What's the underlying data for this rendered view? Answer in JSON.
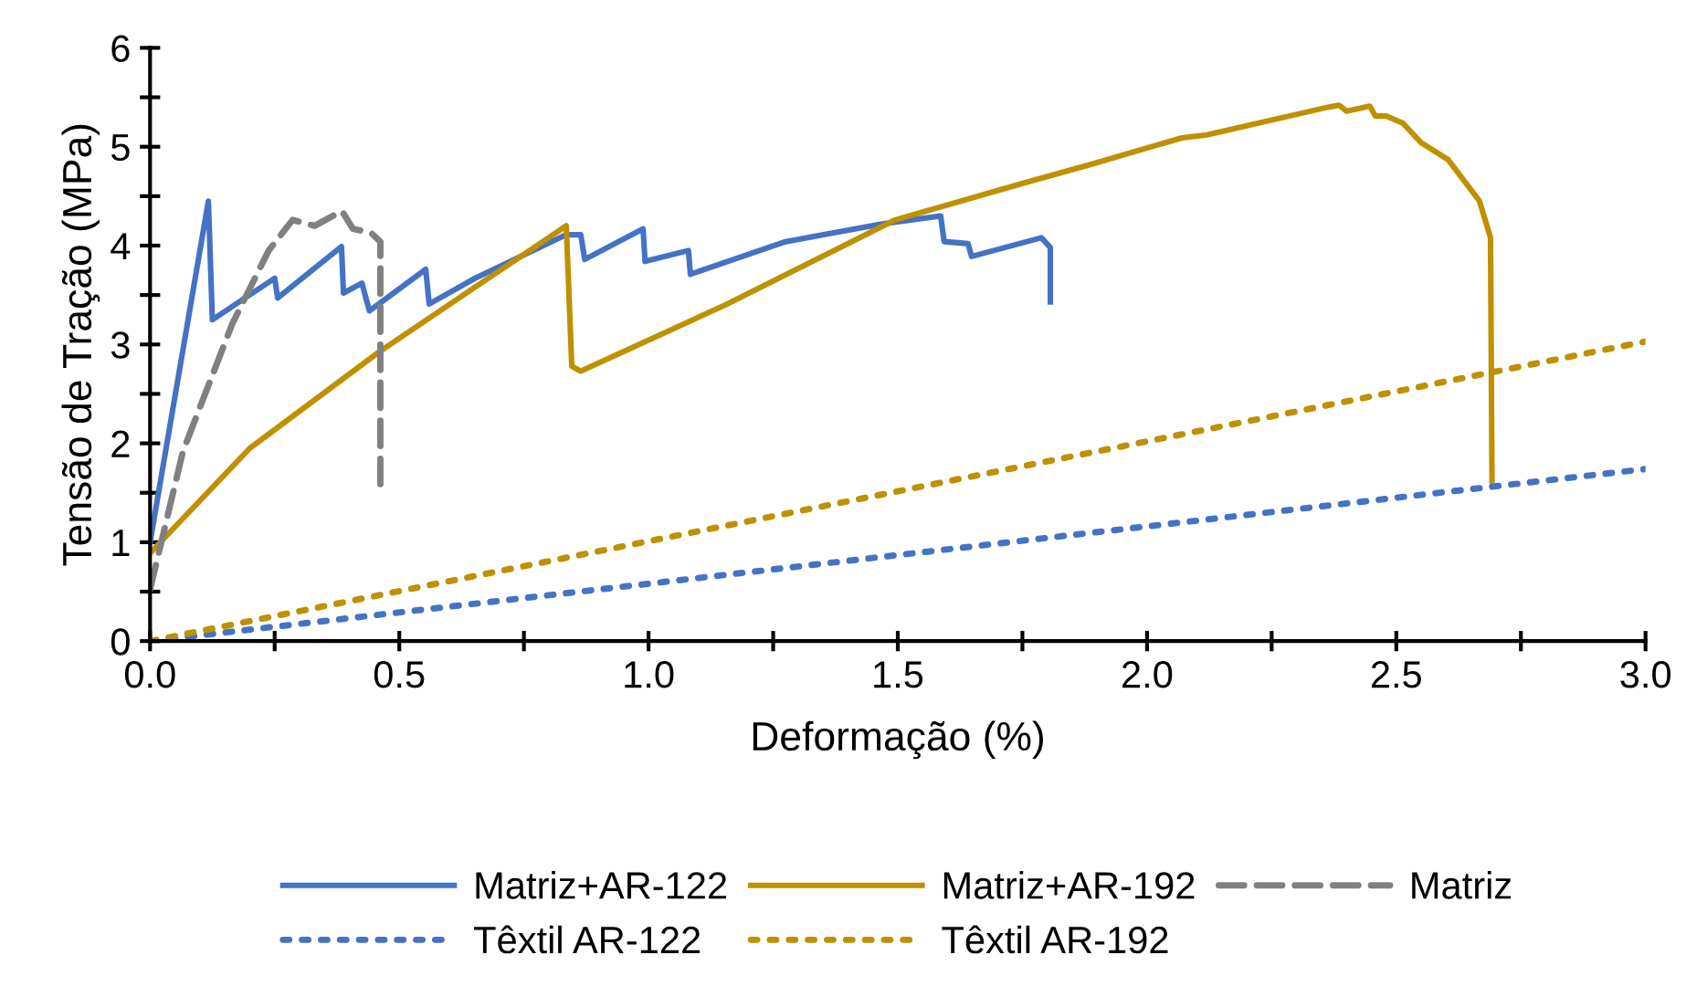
{
  "chart_data": {
    "type": "line",
    "xlabel": "Deformação (%)",
    "ylabel": "Tensão de Tração (MPa)",
    "xlim": [
      0,
      3.0
    ],
    "ylim": [
      0,
      6
    ],
    "xticks": [
      {
        "value": 0,
        "label": "0.0"
      },
      {
        "value": 0.25,
        "label": null
      },
      {
        "value": 0.5,
        "label": "0.5"
      },
      {
        "value": 0.75,
        "label": null
      },
      {
        "value": 1.0,
        "label": "1.0"
      },
      {
        "value": 1.25,
        "label": null
      },
      {
        "value": 1.5,
        "label": "1.5"
      },
      {
        "value": 1.75,
        "label": null
      },
      {
        "value": 2.0,
        "label": "2.0"
      },
      {
        "value": 2.25,
        "label": null
      },
      {
        "value": 2.5,
        "label": "2.5"
      },
      {
        "value": 2.75,
        "label": null
      },
      {
        "value": 3.0,
        "label": "3.0"
      }
    ],
    "yticks": [
      0,
      {
        "value": 0.5,
        "label": null
      },
      1,
      {
        "value": 1.5,
        "label": null
      },
      2,
      {
        "value": 2.5,
        "label": null
      },
      3,
      {
        "value": 3.5,
        "label": null
      },
      4,
      {
        "value": 4.5,
        "label": null
      },
      5,
      {
        "value": 5.5,
        "label": null
      },
      6
    ],
    "grid": false,
    "legend": "bottom",
    "marker": "none",
    "series": [
      {
        "name": "Matriz+AR-122",
        "color": "#4472c4",
        "line_style": "solid",
        "x": [
          0,
          0.117,
          0.125,
          0.25,
          0.256,
          0.384,
          0.388,
          0.425,
          0.44,
          0.553,
          0.56,
          0.652,
          0.835,
          0.864,
          0.872,
          0.989,
          0.993,
          1.08,
          1.084,
          1.275,
          1.469,
          1.586,
          1.593,
          1.641,
          1.648,
          1.788,
          1.806,
          1.806
        ],
        "values": [
          1.0,
          4.45,
          3.25,
          3.67,
          3.47,
          3.99,
          3.52,
          3.62,
          3.34,
          3.76,
          3.41,
          3.67,
          4.11,
          4.11,
          3.86,
          4.17,
          3.84,
          3.95,
          3.71,
          4.04,
          4.22,
          4.3,
          4.04,
          4.02,
          3.89,
          4.08,
          3.98,
          3.43
        ]
      },
      {
        "name": "Matriz+AR-192",
        "color": "#bf9000",
        "line_style": "solid",
        "x": [
          0,
          0.2,
          0.458,
          0.652,
          0.835,
          0.846,
          0.864,
          1.154,
          1.495,
          1.751,
          1.886,
          2.07,
          2.12,
          2.363,
          2.385,
          2.4,
          2.447,
          2.458,
          2.48,
          2.513,
          2.55,
          2.604,
          2.667,
          2.689,
          2.692
        ],
        "values": [
          0.89,
          1.95,
          2.92,
          3.58,
          4.2,
          2.78,
          2.73,
          3.4,
          4.26,
          4.63,
          4.82,
          5.09,
          5.12,
          5.4,
          5.42,
          5.36,
          5.41,
          5.31,
          5.31,
          5.24,
          5.04,
          4.87,
          4.45,
          4.08,
          1.62
        ]
      },
      {
        "name": "Matriz",
        "color": "#808080",
        "line_style": "dashed",
        "x": [
          0,
          0.066,
          0.165,
          0.238,
          0.286,
          0.33,
          0.385,
          0.407,
          0.443,
          0.462,
          0.462
        ],
        "values": [
          0.52,
          1.92,
          3.21,
          3.95,
          4.26,
          4.2,
          4.35,
          4.17,
          4.13,
          4.04,
          1.49
        ]
      },
      {
        "name": "Têxtil AR-122",
        "color": "#4472c4",
        "line_style": "dotted",
        "x": [
          0,
          3.0
        ],
        "values": [
          0,
          1.74
        ]
      },
      {
        "name": "Têxtil AR-192",
        "color": "#bf9000",
        "line_style": "dotted",
        "x": [
          0,
          3.0
        ],
        "values": [
          0,
          3.03
        ]
      }
    ]
  }
}
